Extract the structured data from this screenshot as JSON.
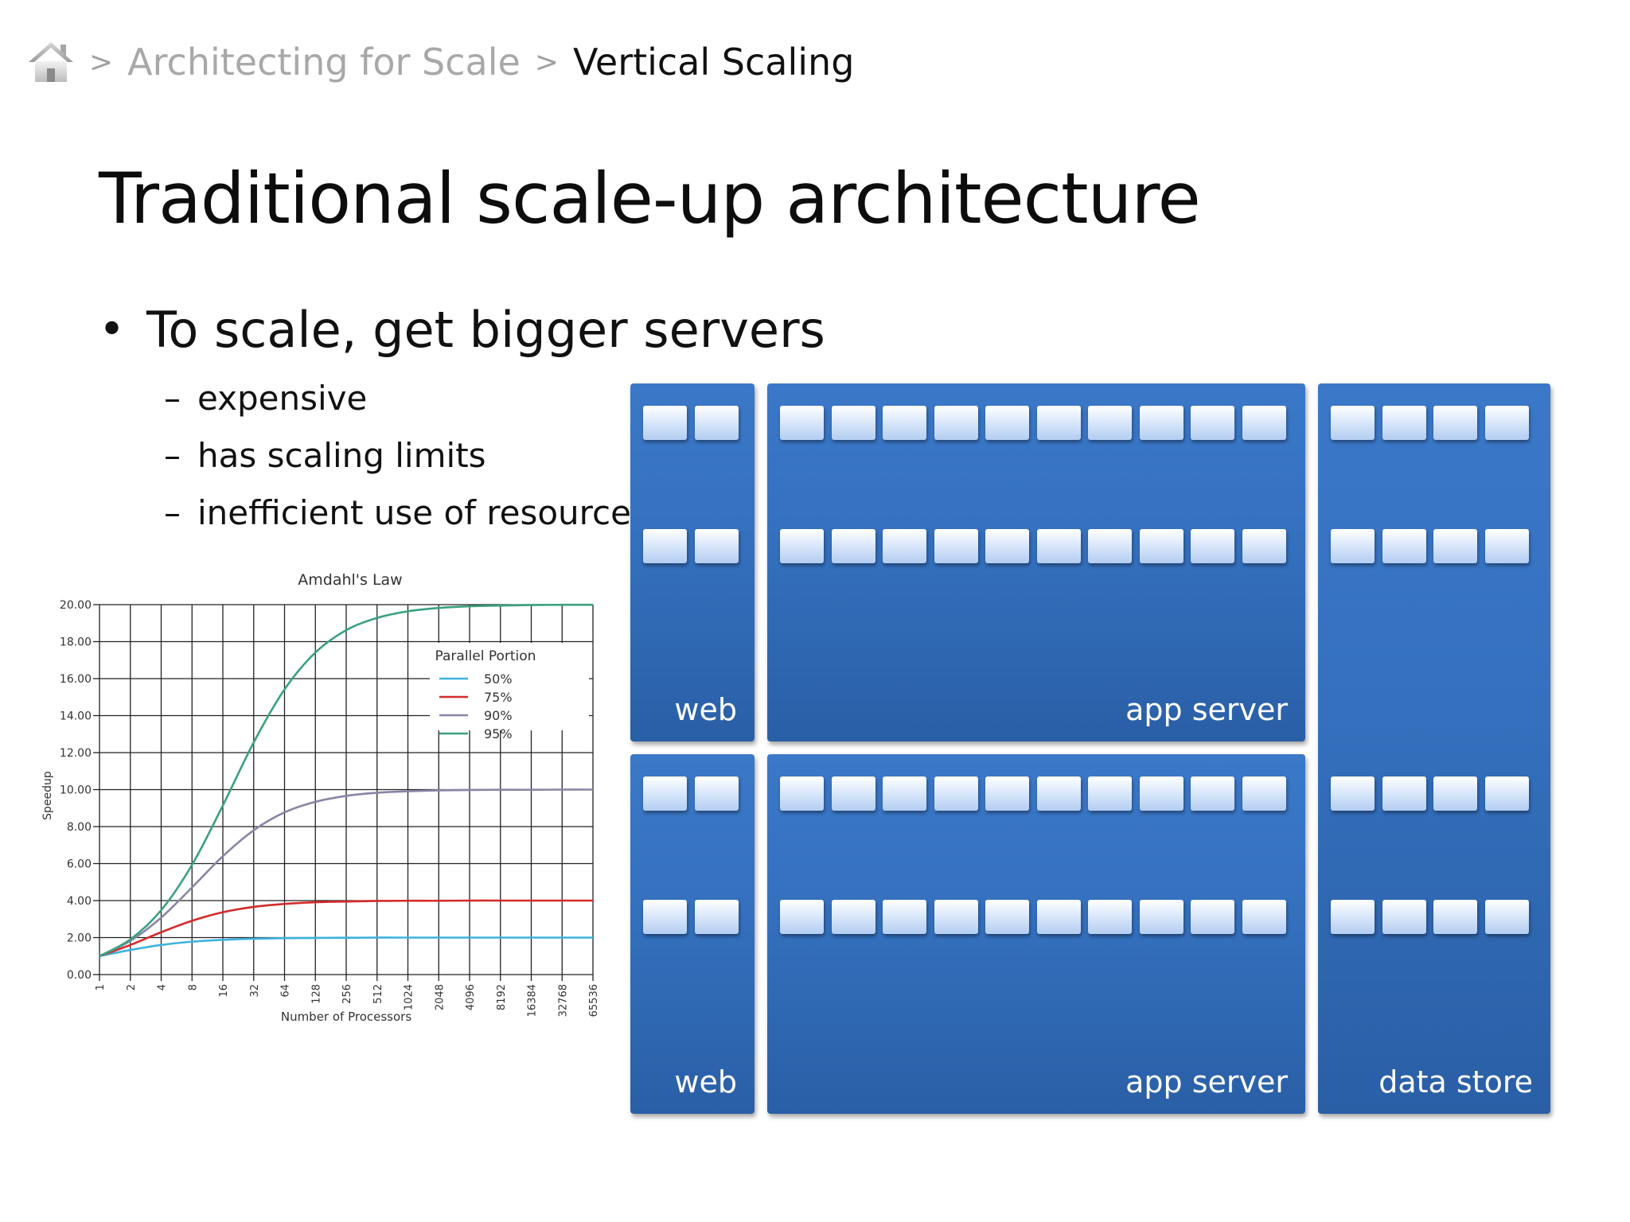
{
  "breadcrumb": {
    "separator": ">",
    "parent": "Architecting for Scale",
    "current": "Vertical Scaling"
  },
  "slide": {
    "title": "Traditional scale-up architecture",
    "bullet_symbol": "•",
    "bullet": "To scale, get bigger servers",
    "sub_dash": "–",
    "sub_bullets": [
      "expensive",
      "has scaling limits",
      "inefficient use of resources"
    ]
  },
  "diagram": {
    "chip_color_top": "#ffffff",
    "rack_color": "#3470be",
    "racks": [
      {
        "label": "web",
        "rows": 2,
        "cols": 2
      },
      {
        "label": "app server",
        "rows": 2,
        "cols": 10
      },
      {
        "label": "web",
        "rows": 2,
        "cols": 2
      },
      {
        "label": "app server",
        "rows": 2,
        "cols": 10
      },
      {
        "label": "data store",
        "rows": 4,
        "cols": 4
      }
    ]
  },
  "chart_data": {
    "type": "line",
    "title": "Amdahl's Law",
    "xlabel": "Number of Processors",
    "ylabel": "Speedup",
    "x_scale": "log2",
    "x": [
      1,
      2,
      4,
      8,
      16,
      32,
      64,
      128,
      256,
      512,
      1024,
      2048,
      4096,
      8192,
      16384,
      32768,
      65536
    ],
    "x_tick_labels": [
      "1",
      "2",
      "4",
      "8",
      "16",
      "32",
      "64",
      "128",
      "256",
      "512",
      "1024",
      "2048",
      "4096",
      "8192",
      "16384",
      "32768",
      "65536"
    ],
    "ylim": [
      0,
      20
    ],
    "y_ticks": [
      0,
      2,
      4,
      6,
      8,
      10,
      12,
      14,
      16,
      18,
      20
    ],
    "y_tick_labels": [
      "0.00",
      "2.00",
      "4.00",
      "6.00",
      "8.00",
      "10.00",
      "12.00",
      "14.00",
      "16.00",
      "18.00",
      "20.00"
    ],
    "grid": true,
    "legend": {
      "title": "Parallel Portion",
      "placement": "right"
    },
    "series": [
      {
        "name": "50%",
        "color": "#3cb3dd",
        "values": [
          1.0,
          1.33,
          1.6,
          1.78,
          1.88,
          1.94,
          1.97,
          1.98,
          1.99,
          2.0,
          2.0,
          2.0,
          2.0,
          2.0,
          2.0,
          2.0,
          2.0
        ]
      },
      {
        "name": "75%",
        "color": "#d42b2b",
        "values": [
          1.0,
          1.6,
          2.29,
          2.91,
          3.37,
          3.66,
          3.82,
          3.91,
          3.95,
          3.98,
          3.99,
          3.99,
          4.0,
          4.0,
          4.0,
          4.0,
          4.0
        ]
      },
      {
        "name": "90%",
        "color": "#8a84a6",
        "values": [
          1.0,
          1.82,
          3.08,
          4.71,
          6.4,
          7.8,
          8.77,
          9.34,
          9.66,
          9.83,
          9.91,
          9.96,
          9.98,
          9.99,
          9.99,
          10.0,
          10.0
        ]
      },
      {
        "name": "95%",
        "color": "#3aa17e",
        "values": [
          1.0,
          1.9,
          3.48,
          5.93,
          9.14,
          12.55,
          15.42,
          17.41,
          18.62,
          19.28,
          19.64,
          19.82,
          19.91,
          19.95,
          19.98,
          19.99,
          19.99
        ]
      }
    ]
  }
}
